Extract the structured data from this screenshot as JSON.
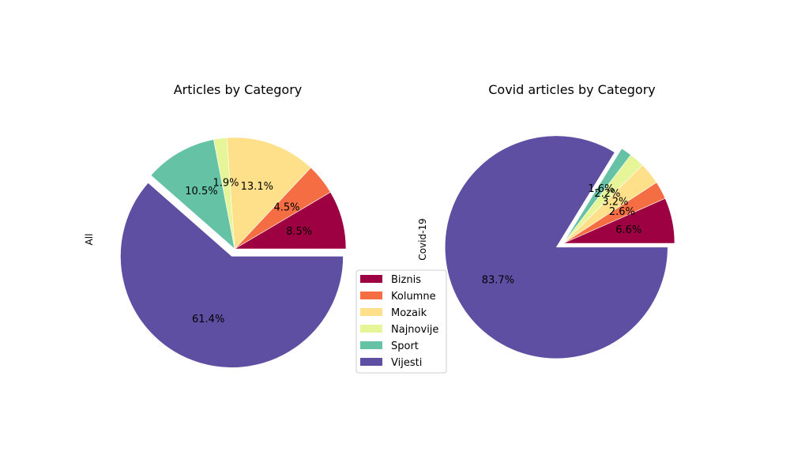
{
  "chart_data": [
    {
      "type": "pie",
      "title": "Articles by Category",
      "ylabel": "All",
      "categories": [
        "Biznis",
        "Kolumne",
        "Mozaik",
        "Najnovije",
        "Sport",
        "Vijesti"
      ],
      "values": [
        8.5,
        4.5,
        13.1,
        1.9,
        10.5,
        61.4
      ],
      "labels": [
        "8.5%",
        "4.5%",
        "13.1%",
        "1.9%",
        "10.5%",
        "61.4%"
      ],
      "exploded": "Vijesti",
      "start_angle_deg": 0,
      "direction": "counterclockwise"
    },
    {
      "type": "pie",
      "title": "Covid articles by Category",
      "ylabel": "Covid-19",
      "categories": [
        "Biznis",
        "Kolumne",
        "Mozaik",
        "Najnovije",
        "Sport",
        "Vijesti"
      ],
      "values": [
        6.6,
        2.6,
        3.2,
        2.2,
        1.6,
        83.7
      ],
      "labels": [
        "6.6%",
        "2.6%",
        "3.2%",
        "2.2%",
        "1.6%",
        "83.7%"
      ],
      "exploded": "Vijesti",
      "start_angle_deg": 0,
      "direction": "counterclockwise"
    }
  ],
  "legend": {
    "placement": "center, between the two pies",
    "items": [
      {
        "label": "Biznis",
        "color": "#9e0142"
      },
      {
        "label": "Kolumne",
        "color": "#f46d43"
      },
      {
        "label": "Mozaik",
        "color": "#fee08b"
      },
      {
        "label": "Najnovije",
        "color": "#e6f598"
      },
      {
        "label": "Sport",
        "color": "#66c2a5"
      },
      {
        "label": "Vijesti",
        "color": "#5e4fa2"
      }
    ]
  }
}
